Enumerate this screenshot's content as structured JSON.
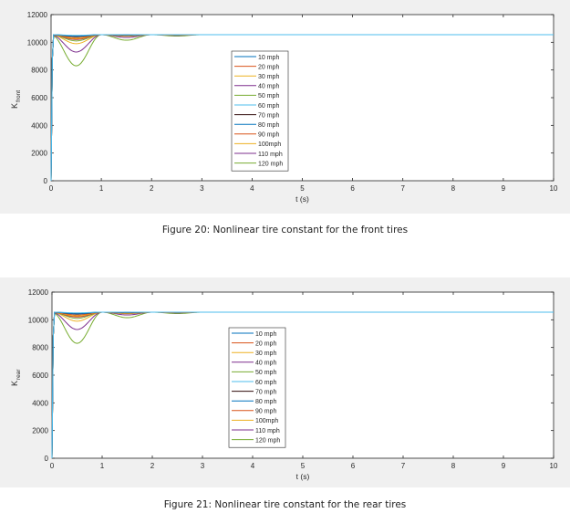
{
  "chart_data": [
    {
      "type": "line",
      "xlabel": "t (s)",
      "ylabel_main": "K",
      "ylabel_sub": "front",
      "xlim": [
        0,
        10
      ],
      "ylim": [
        0,
        12000
      ],
      "xticks": [
        0,
        1,
        2,
        3,
        4,
        5,
        6,
        7,
        8,
        9,
        10
      ],
      "yticks": [
        0,
        2000,
        4000,
        6000,
        8000,
        10000,
        12000
      ],
      "grid": false,
      "legend_position": "center-left",
      "steady_value": 10550,
      "first_dip_time": 0.5,
      "second_dip_time": 1.5,
      "series": [
        {
          "name": "10 mph",
          "color": "#0072bd",
          "min": 10470,
          "second_min": 10540
        },
        {
          "name": "20 mph",
          "color": "#d95319",
          "min": 10230,
          "second_min": 10500
        },
        {
          "name": "30 mph",
          "color": "#edb120",
          "min": 9900,
          "second_min": 10440
        },
        {
          "name": "40 mph",
          "color": "#7e2f8e",
          "min": 9300,
          "second_min": 10350
        },
        {
          "name": "50 mph",
          "color": "#77ac30",
          "min": 8300,
          "second_min": 10150
        },
        {
          "name": "60 mph",
          "color": "#4dbeee",
          "min": 10500,
          "second_min": 10545
        },
        {
          "name": "70 mph",
          "color": "#2f0a0a",
          "min": 10460,
          "second_min": 10535
        },
        {
          "name": "80 mph",
          "color": "#0072bd",
          "min": 10420,
          "second_min": 10530
        },
        {
          "name": "90 mph",
          "color": "#d95319",
          "min": 10350,
          "second_min": 10520
        },
        {
          "name": "100mph",
          "color": "#edb120",
          "min": 10280,
          "second_min": 10510
        },
        {
          "name": "110 mph",
          "color": "#7e2f8e",
          "min": 10200,
          "second_min": 10490
        },
        {
          "name": "120 mph",
          "color": "#77ac30",
          "min": 10100,
          "second_min": 10470
        }
      ]
    },
    {
      "type": "line",
      "xlabel": "t (s)",
      "ylabel_main": "K",
      "ylabel_sub": "rear",
      "xlim": [
        0,
        10
      ],
      "ylim": [
        0,
        12000
      ],
      "xticks": [
        0,
        1,
        2,
        3,
        4,
        5,
        6,
        7,
        8,
        9,
        10
      ],
      "yticks": [
        0,
        2000,
        4000,
        6000,
        8000,
        10000,
        12000
      ],
      "grid": false,
      "legend_position": "center-left",
      "steady_value": 10550,
      "first_dip_time": 0.5,
      "second_dip_time": 1.5,
      "series": [
        {
          "name": "10 mph",
          "color": "#0072bd",
          "min": 10470,
          "second_min": 10540
        },
        {
          "name": "20 mph",
          "color": "#d95319",
          "min": 10230,
          "second_min": 10500
        },
        {
          "name": "30 mph",
          "color": "#edb120",
          "min": 9900,
          "second_min": 10440
        },
        {
          "name": "40 mph",
          "color": "#7e2f8e",
          "min": 9300,
          "second_min": 10350
        },
        {
          "name": "50 mph",
          "color": "#77ac30",
          "min": 8300,
          "second_min": 10150
        },
        {
          "name": "60 mph",
          "color": "#4dbeee",
          "min": 10500,
          "second_min": 10545
        },
        {
          "name": "70 mph",
          "color": "#2f0a0a",
          "min": 10460,
          "second_min": 10535
        },
        {
          "name": "80 mph",
          "color": "#0072bd",
          "min": 10420,
          "second_min": 10530
        },
        {
          "name": "90 mph",
          "color": "#d95319",
          "min": 10350,
          "second_min": 10520
        },
        {
          "name": "100mph",
          "color": "#edb120",
          "min": 10280,
          "second_min": 10510
        },
        {
          "name": "110 mph",
          "color": "#7e2f8e",
          "min": 10200,
          "second_min": 10490
        },
        {
          "name": "120 mph",
          "color": "#77ac30",
          "min": 10100,
          "second_min": 10470
        }
      ]
    }
  ],
  "captions": {
    "front": "Figure 20: Nonlinear tire constant for the front tires",
    "rear": "Figure 21: Nonlinear tire constant for the rear tires"
  }
}
